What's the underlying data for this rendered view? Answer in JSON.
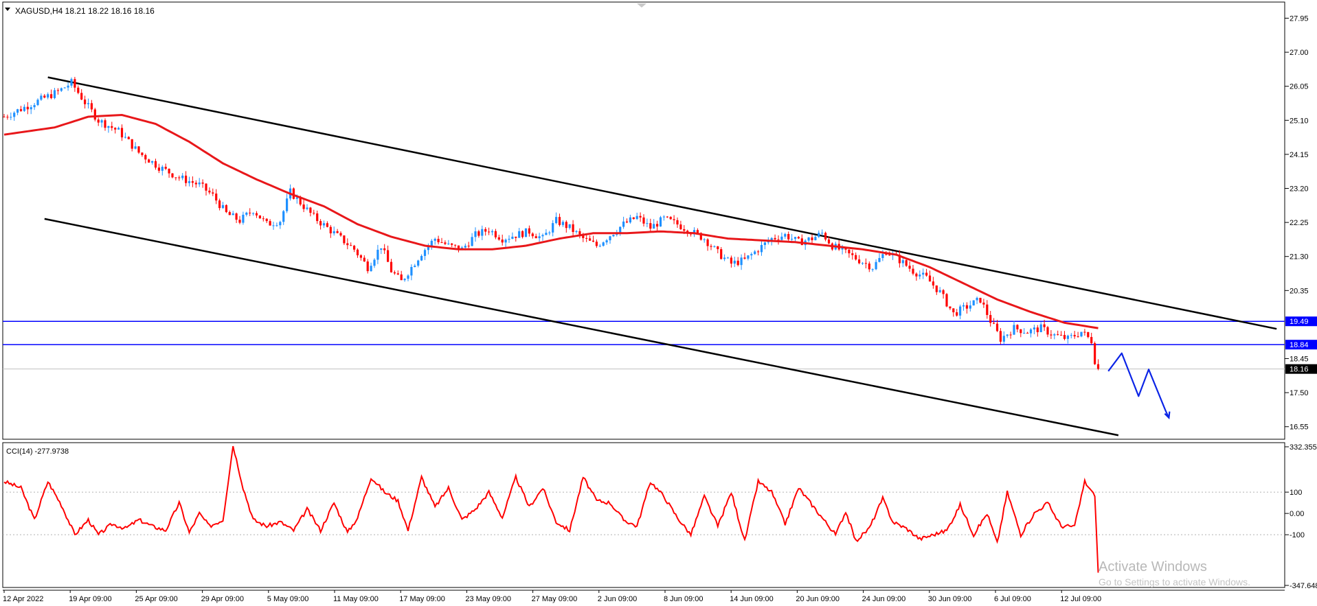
{
  "window": {
    "title": "XAGUSD,H4  18.21 18.22 18.16 18.16"
  },
  "colors": {
    "bull_candle": "#1e90ff",
    "bear_candle": "#ff0000",
    "ma_line": "#e8171a",
    "channel": "#000000",
    "levels": "#0000ff",
    "projection": "#0b24e6",
    "cci_line": "#ff0000"
  },
  "chart_data": [
    {
      "type": "candlestick",
      "symbol": "XAGUSD",
      "timeframe": "H4",
      "ohlc_header": "18.21 18.22 18.16 18.16",
      "ylim": [
        16.2,
        28.4
      ],
      "y_ticks": [
        "27.95",
        "27.00",
        "26.05",
        "25.10",
        "24.15",
        "23.20",
        "22.25",
        "21.30",
        "20.35",
        "18.45",
        "17.50",
        "16.55"
      ],
      "x_ticks": [
        "12 Apr 2022",
        "19 Apr 09:00",
        "25 Apr 09:00",
        "29 Apr 09:00",
        "5 May 09:00",
        "11 May 09:00",
        "17 May 09:00",
        "23 May 09:00",
        "27 May 09:00",
        "2 Jun 09:00",
        "8 Jun 09:00",
        "14 Jun 09:00",
        "20 Jun 09:00",
        "24 Jun 09:00",
        "30 Jun 09:00",
        "6 Jul 09:00",
        "12 Jul 09:00"
      ],
      "price_anchors": [
        [
          0,
          25.2
        ],
        [
          16,
          25.9
        ],
        [
          20,
          26.15
        ],
        [
          24,
          25.6
        ],
        [
          28,
          25.1
        ],
        [
          34,
          24.8
        ],
        [
          40,
          24.2
        ],
        [
          46,
          23.8
        ],
        [
          52,
          23.5
        ],
        [
          58,
          23.3
        ],
        [
          62,
          23.0
        ],
        [
          66,
          22.5
        ],
        [
          70,
          22.3
        ],
        [
          74,
          22.6
        ],
        [
          78,
          22.2
        ],
        [
          82,
          22.3
        ],
        [
          85,
          23.1
        ],
        [
          88,
          22.8
        ],
        [
          92,
          22.4
        ],
        [
          96,
          22.1
        ],
        [
          100,
          21.8
        ],
        [
          104,
          21.5
        ],
        [
          108,
          21.0
        ],
        [
          112,
          21.6
        ],
        [
          115,
          20.9
        ],
        [
          118,
          20.6
        ],
        [
          121,
          21.0
        ],
        [
          124,
          21.4
        ],
        [
          128,
          21.8
        ],
        [
          132,
          21.6
        ],
        [
          136,
          21.5
        ],
        [
          140,
          21.9
        ],
        [
          144,
          22.05
        ],
        [
          148,
          21.8
        ],
        [
          152,
          21.9
        ],
        [
          156,
          22.0
        ],
        [
          160,
          21.8
        ],
        [
          164,
          22.3
        ],
        [
          168,
          22.1
        ],
        [
          172,
          21.8
        ],
        [
          176,
          21.6
        ],
        [
          180,
          21.9
        ],
        [
          184,
          22.2
        ],
        [
          188,
          22.4
        ],
        [
          192,
          22.1
        ],
        [
          196,
          22.35
        ],
        [
          200,
          22.2
        ],
        [
          204,
          22.0
        ],
        [
          208,
          21.8
        ],
        [
          212,
          21.4
        ],
        [
          216,
          21.1
        ],
        [
          220,
          21.2
        ],
        [
          224,
          21.5
        ],
        [
          228,
          21.8
        ],
        [
          232,
          21.9
        ],
        [
          236,
          21.7
        ],
        [
          240,
          21.8
        ],
        [
          243,
          21.95
        ],
        [
          246,
          21.6
        ],
        [
          250,
          21.4
        ],
        [
          254,
          21.2
        ],
        [
          258,
          21.0
        ],
        [
          262,
          21.45
        ],
        [
          266,
          21.2
        ],
        [
          270,
          20.9
        ],
        [
          274,
          20.7
        ],
        [
          278,
          20.3
        ],
        [
          282,
          19.7
        ],
        [
          286,
          19.9
        ],
        [
          290,
          20.1
        ],
        [
          293,
          19.5
        ],
        [
          296,
          19.0
        ],
        [
          300,
          19.3
        ],
        [
          304,
          19.2
        ],
        [
          308,
          19.3
        ],
        [
          312,
          19.1
        ],
        [
          316,
          19.0
        ],
        [
          320,
          19.2
        ],
        [
          323,
          18.95
        ],
        [
          324,
          18.4
        ],
        [
          325,
          18.16
        ]
      ],
      "ma_anchors": [
        [
          0,
          24.7
        ],
        [
          15,
          24.9
        ],
        [
          25,
          25.2
        ],
        [
          35,
          25.25
        ],
        [
          45,
          25.0
        ],
        [
          55,
          24.5
        ],
        [
          65,
          23.9
        ],
        [
          75,
          23.45
        ],
        [
          85,
          23.05
        ],
        [
          95,
          22.7
        ],
        [
          105,
          22.2
        ],
        [
          115,
          21.85
        ],
        [
          125,
          21.6
        ],
        [
          135,
          21.5
        ],
        [
          145,
          21.5
        ],
        [
          155,
          21.6
        ],
        [
          165,
          21.8
        ],
        [
          175,
          21.95
        ],
        [
          185,
          21.95
        ],
        [
          195,
          22.0
        ],
        [
          205,
          21.95
        ],
        [
          215,
          21.8
        ],
        [
          225,
          21.75
        ],
        [
          235,
          21.7
        ],
        [
          245,
          21.6
        ],
        [
          255,
          21.5
        ],
        [
          265,
          21.35
        ],
        [
          275,
          21.0
        ],
        [
          285,
          20.55
        ],
        [
          295,
          20.1
        ],
        [
          305,
          19.75
        ],
        [
          315,
          19.45
        ],
        [
          325,
          19.3
        ]
      ],
      "channel_lines": [
        {
          "from": [
            13,
            26.3
          ],
          "to": [
            378,
            19.28
          ]
        },
        {
          "from": [
            12,
            22.35
          ],
          "to": [
            331,
            16.31
          ]
        }
      ],
      "horizontal_levels": [
        "19.49",
        "18.84"
      ],
      "current_price": "18.16",
      "projection": [
        [
          328,
          18.1
        ],
        [
          332,
          18.6
        ],
        [
          337,
          17.4
        ],
        [
          340,
          18.15
        ],
        [
          345,
          17.0
        ],
        [
          346,
          16.8
        ]
      ]
    },
    {
      "type": "line",
      "name": "CCI(14)",
      "header": "CCI(14) -277.9738",
      "value": -277.9738,
      "ylim": [
        -347.64,
        332.355
      ],
      "y_ticks": [
        "332.355",
        "100",
        "0.00",
        "-100",
        "-347.648"
      ],
      "level_lines": [
        100,
        -100
      ],
      "anchors": [
        [
          0,
          150
        ],
        [
          5,
          120
        ],
        [
          9,
          -30
        ],
        [
          13,
          150
        ],
        [
          17,
          40
        ],
        [
          21,
          -100
        ],
        [
          25,
          -30
        ],
        [
          28,
          -100
        ],
        [
          32,
          -50
        ],
        [
          36,
          -70
        ],
        [
          40,
          -30
        ],
        [
          44,
          -60
        ],
        [
          48,
          -80
        ],
        [
          52,
          50
        ],
        [
          55,
          -90
        ],
        [
          58,
          0
        ],
        [
          61,
          -60
        ],
        [
          65,
          -30
        ],
        [
          68,
          320
        ],
        [
          71,
          120
        ],
        [
          74,
          -30
        ],
        [
          78,
          -60
        ],
        [
          82,
          -40
        ],
        [
          86,
          -80
        ],
        [
          90,
          20
        ],
        [
          94,
          -80
        ],
        [
          98,
          50
        ],
        [
          102,
          -90
        ],
        [
          105,
          -20
        ],
        [
          109,
          170
        ],
        [
          113,
          100
        ],
        [
          117,
          60
        ],
        [
          120,
          -80
        ],
        [
          124,
          170
        ],
        [
          128,
          30
        ],
        [
          132,
          120
        ],
        [
          136,
          -30
        ],
        [
          140,
          20
        ],
        [
          144,
          100
        ],
        [
          148,
          -20
        ],
        [
          152,
          170
        ],
        [
          156,
          30
        ],
        [
          160,
          120
        ],
        [
          164,
          -40
        ],
        [
          168,
          -80
        ],
        [
          172,
          170
        ],
        [
          176,
          60
        ],
        [
          180,
          50
        ],
        [
          184,
          -30
        ],
        [
          188,
          -60
        ],
        [
          192,
          150
        ],
        [
          196,
          80
        ],
        [
          200,
          -20
        ],
        [
          204,
          -100
        ],
        [
          208,
          80
        ],
        [
          212,
          -60
        ],
        [
          216,
          100
        ],
        [
          220,
          -130
        ],
        [
          224,
          150
        ],
        [
          228,
          100
        ],
        [
          232,
          -50
        ],
        [
          236,
          120
        ],
        [
          240,
          40
        ],
        [
          243,
          -20
        ],
        [
          247,
          -100
        ],
        [
          250,
          10
        ],
        [
          253,
          -130
        ],
        [
          257,
          -70
        ],
        [
          261,
          70
        ],
        [
          264,
          -40
        ],
        [
          268,
          -70
        ],
        [
          272,
          -120
        ],
        [
          276,
          -100
        ],
        [
          280,
          -80
        ],
        [
          284,
          40
        ],
        [
          288,
          -100
        ],
        [
          292,
          0
        ],
        [
          295,
          -140
        ],
        [
          298,
          100
        ],
        [
          302,
          -100
        ],
        [
          306,
          0
        ],
        [
          310,
          50
        ],
        [
          314,
          -60
        ],
        [
          318,
          -60
        ],
        [
          321,
          150
        ],
        [
          324,
          80
        ],
        [
          325,
          -278
        ]
      ]
    }
  ],
  "watermark": {
    "line1": "Activate Windows",
    "line2": "Go to Settings to activate Windows."
  }
}
